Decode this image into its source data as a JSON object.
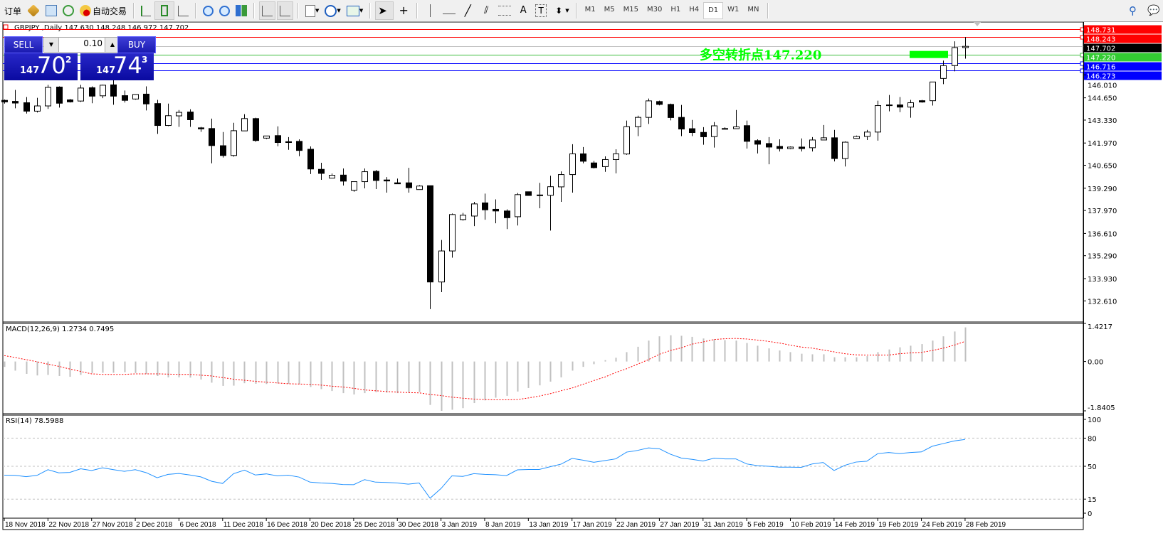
{
  "toolbar": {
    "new_order_label": "订单",
    "auto_trading_label": "自动交易",
    "timeframes": [
      "M1",
      "M5",
      "M15",
      "M30",
      "H1",
      "H4",
      "D1",
      "W1",
      "MN"
    ],
    "selected_timeframe": "D1",
    "icons": [
      "new-order-icon",
      "market-watch-icon",
      "navigator-icon",
      "signals-icon",
      "auto-trading-icon",
      "bar-chart-icon",
      "candlestick-icon",
      "line-chart-icon",
      "zoom-in-icon",
      "zoom-out-icon",
      "tile-windows-icon",
      "chart-shift-icon",
      "auto-scroll-icon",
      "indicators-icon",
      "periods-icon",
      "templates-icon",
      "cursor-icon",
      "crosshair-icon",
      "vertical-line-icon",
      "horizontal-line-icon",
      "trendline-icon",
      "equidistant-channel-icon",
      "fibonacci-icon",
      "text-icon",
      "text-label-icon",
      "arrows-icon",
      "search-icon",
      "chat-icon"
    ]
  },
  "chart": {
    "header": "GBPJPY ,Daily  147.630 148.248 146.972 147.702",
    "annotation": "多空转折点147.220",
    "colors": {
      "bull_body": "#ffffff",
      "bear_body": "#000000",
      "resistance": "#ff0000",
      "support": "#0000ff",
      "pivot": "#00ff00",
      "bid": "#c0c0c0",
      "macd_hist": "#c0c0c0",
      "macd_signal": "#ff0000",
      "rsi": "#1e90ff"
    }
  },
  "trade_panel": {
    "sell_label": "SELL",
    "buy_label": "BUY",
    "lot": "0.10",
    "sell_big": "147",
    "sell_mid": "70",
    "sell_sup": "2",
    "buy_big": "147",
    "buy_mid": "74",
    "buy_sup": "3"
  },
  "chart_data": [
    {
      "type": "candlestick",
      "symbol": "GBPJPY",
      "timeframe": "Daily",
      "ylim": [
        131.4,
        149.06
      ],
      "price_ticks": [
        "146.010",
        "144.650",
        "143.330",
        "141.970",
        "140.650",
        "139.290",
        "137.970",
        "136.610",
        "135.290",
        "133.930",
        "132.610"
      ],
      "date_labels": [
        "18 Nov 2018",
        "22 Nov 2018",
        "27 Nov 2018",
        "2 Dec 2018",
        "6 Dec 2018",
        "11 Dec 2018",
        "16 Dec 2018",
        "20 Dec 2018",
        "25 Dec 2018",
        "30 Dec 2018",
        "3 Jan 2019",
        "8 Jan 2019",
        "13 Jan 2019",
        "17 Jan 2019",
        "22 Jan 2019",
        "27 Jan 2019",
        "31 Jan 2019",
        "5 Feb 2019",
        "10 Feb 2019",
        "14 Feb 2019",
        "19 Feb 2019",
        "24 Feb 2019",
        "28 Feb 2019"
      ],
      "date_label_every_bars": 4,
      "levels": [
        {
          "value": 148.731,
          "label": "148.731",
          "kind": "resistance"
        },
        {
          "value": 148.243,
          "label": "148.243",
          "kind": "resistance"
        },
        {
          "value": 147.702,
          "label": "147.702",
          "kind": "bid"
        },
        {
          "value": 147.22,
          "label": "147.220",
          "kind": "pivot"
        },
        {
          "value": 146.716,
          "label": "146.716",
          "kind": "support"
        },
        {
          "value": 146.273,
          "label": "146.273",
          "kind": "support"
        }
      ],
      "ohlc": [
        [
          144.5,
          144.55,
          144.31,
          144.41
        ],
        [
          144.44,
          145.12,
          144.03,
          144.34
        ],
        [
          144.36,
          144.7,
          143.72,
          143.86
        ],
        [
          143.86,
          144.65,
          143.78,
          144.17
        ],
        [
          144.17,
          145.42,
          143.99,
          145.27
        ],
        [
          145.29,
          145.33,
          144.07,
          144.33
        ],
        [
          144.53,
          144.58,
          144.37,
          144.41
        ],
        [
          144.46,
          145.42,
          144.41,
          145.23
        ],
        [
          145.25,
          145.33,
          144.33,
          144.75
        ],
        [
          144.77,
          145.43,
          144.63,
          145.4
        ],
        [
          145.42,
          145.7,
          144.24,
          144.75
        ],
        [
          144.78,
          145.08,
          144.37,
          144.5
        ],
        [
          144.58,
          144.85,
          144.54,
          144.85
        ],
        [
          144.87,
          145.33,
          143.9,
          144.29
        ],
        [
          144.31,
          144.53,
          142.51,
          143.01
        ],
        [
          143.01,
          144.31,
          142.97,
          143.59
        ],
        [
          143.58,
          143.93,
          142.93,
          143.79
        ],
        [
          143.81,
          143.97,
          142.93,
          143.35
        ],
        [
          142.87,
          142.93,
          142.63,
          142.81
        ],
        [
          142.83,
          143.42,
          140.77,
          141.82
        ],
        [
          141.81,
          142.62,
          141.11,
          141.23
        ],
        [
          141.23,
          143.17,
          141.16,
          142.7
        ],
        [
          142.69,
          143.68,
          142.69,
          143.42
        ],
        [
          143.42,
          143.47,
          142.04,
          142.12
        ],
        [
          142.26,
          142.39,
          142.21,
          142.39
        ],
        [
          142.41,
          142.96,
          141.78,
          142.0
        ],
        [
          142.05,
          142.32,
          141.57,
          142.0
        ],
        [
          142.07,
          142.19,
          141.19,
          141.53
        ],
        [
          141.6,
          141.77,
          140.13,
          140.43
        ],
        [
          140.41,
          140.8,
          139.79,
          140.17
        ],
        [
          139.89,
          140.16,
          139.89,
          140.06
        ],
        [
          140.07,
          140.46,
          139.45,
          139.71
        ],
        [
          139.17,
          139.68,
          139.08,
          139.68
        ],
        [
          139.68,
          140.46,
          139.28,
          140.27
        ],
        [
          140.29,
          140.37,
          139.24,
          139.75
        ],
        [
          139.78,
          139.95,
          139.03,
          139.72
        ],
        [
          139.61,
          139.86,
          139.55,
          139.55
        ],
        [
          139.61,
          140.5,
          139.03,
          139.32
        ],
        [
          139.21,
          139.47,
          139.21,
          139.42
        ],
        [
          139.44,
          139.44,
          132.12,
          133.73
        ],
        [
          133.73,
          136.22,
          133.13,
          135.57
        ],
        [
          135.57,
          137.79,
          135.17,
          137.73
        ],
        [
          137.43,
          137.83,
          137.37,
          137.69
        ],
        [
          137.64,
          138.48,
          137.04,
          138.36
        ],
        [
          138.42,
          138.97,
          137.42,
          138.01
        ],
        [
          138.04,
          138.63,
          137.21,
          137.94
        ],
        [
          137.94,
          138.04,
          136.87,
          137.54
        ],
        [
          137.6,
          139.01,
          137.08,
          138.91
        ],
        [
          139.08,
          139.08,
          138.86,
          138.86
        ],
        [
          138.89,
          139.61,
          138.1,
          138.86
        ],
        [
          138.87,
          140.03,
          136.78,
          139.38
        ],
        [
          139.37,
          140.29,
          138.48,
          140.1
        ],
        [
          140.1,
          141.9,
          139.03,
          141.33
        ],
        [
          141.33,
          141.73,
          140.77,
          140.89
        ],
        [
          140.79,
          140.91,
          140.46,
          140.51
        ],
        [
          140.57,
          141.18,
          140.26,
          140.99
        ],
        [
          140.99,
          141.6,
          140.17,
          141.33
        ],
        [
          141.32,
          143.3,
          141.27,
          142.94
        ],
        [
          142.94,
          143.59,
          142.38,
          143.49
        ],
        [
          143.49,
          144.61,
          143.1,
          144.47
        ],
        [
          144.43,
          144.48,
          144.2,
          144.26
        ],
        [
          144.26,
          144.31,
          143.31,
          143.48
        ],
        [
          143.49,
          144.23,
          142.38,
          142.8
        ],
        [
          142.82,
          143.34,
          142.38,
          142.59
        ],
        [
          142.6,
          142.91,
          141.87,
          142.34
        ],
        [
          142.35,
          143.21,
          141.7,
          142.99
        ],
        [
          142.82,
          142.9,
          142.8,
          142.83
        ],
        [
          142.82,
          143.93,
          142.82,
          142.93
        ],
        [
          143.0,
          143.3,
          141.64,
          142.07
        ],
        [
          142.11,
          142.19,
          141.35,
          141.9
        ],
        [
          141.94,
          142.32,
          140.71,
          141.73
        ],
        [
          141.77,
          142.19,
          141.47,
          141.64
        ],
        [
          141.64,
          141.77,
          141.6,
          141.73
        ],
        [
          141.73,
          142.24,
          141.47,
          141.64
        ],
        [
          141.69,
          142.32,
          141.47,
          142.15
        ],
        [
          142.15,
          143.04,
          142.15,
          142.28
        ],
        [
          142.28,
          142.75,
          140.88,
          141.05
        ],
        [
          141.05,
          142.07,
          140.58,
          142.02
        ],
        [
          142.24,
          142.41,
          142.24,
          142.36
        ],
        [
          142.36,
          142.75,
          142.15,
          142.62
        ],
        [
          142.62,
          144.48,
          142.11,
          144.19
        ],
        [
          144.19,
          144.82,
          143.85,
          144.23
        ],
        [
          144.23,
          144.7,
          143.8,
          144.1
        ],
        [
          144.1,
          144.53,
          143.47,
          144.36
        ],
        [
          144.48,
          144.53,
          144.36,
          144.4
        ],
        [
          144.48,
          145.59,
          144.19,
          145.59
        ],
        [
          145.8,
          146.86,
          145.46,
          146.56
        ],
        [
          146.56,
          148.0,
          146.22,
          147.63
        ],
        [
          147.63,
          148.248,
          146.972,
          147.702
        ]
      ]
    },
    {
      "type": "bar+line",
      "title": "MACD(12,26,9) 1.2734 0.7495",
      "ylim": [
        -1.8405,
        1.4217
      ],
      "ticks": [
        "1.4217",
        "0.00",
        "-1.8405"
      ],
      "histogram": [
        -0.2,
        -0.34,
        -0.46,
        -0.52,
        -0.5,
        -0.54,
        -0.57,
        -0.5,
        -0.43,
        -0.42,
        -0.42,
        -0.4,
        -0.43,
        -0.46,
        -0.54,
        -0.59,
        -0.59,
        -0.6,
        -0.67,
        -0.79,
        -0.91,
        -0.9,
        -0.81,
        -0.83,
        -0.84,
        -0.82,
        -0.83,
        -0.85,
        -0.95,
        -1.03,
        -1.1,
        -1.18,
        -1.23,
        -1.18,
        -1.14,
        -1.16,
        -1.18,
        -1.17,
        -1.14,
        -1.62,
        -1.84,
        -1.8,
        -1.74,
        -1.55,
        -1.45,
        -1.35,
        -1.28,
        -1.12,
        -0.99,
        -0.89,
        -0.75,
        -0.59,
        -0.34,
        -0.2,
        -0.1,
        0.05,
        0.14,
        0.35,
        0.55,
        0.78,
        0.94,
        0.98,
        0.96,
        0.92,
        0.86,
        0.83,
        0.8,
        0.78,
        0.69,
        0.59,
        0.49,
        0.41,
        0.35,
        0.29,
        0.27,
        0.27,
        0.16,
        0.16,
        0.16,
        0.2,
        0.35,
        0.45,
        0.53,
        0.59,
        0.65,
        0.78,
        0.94,
        1.12,
        1.2734
      ],
      "signal": [
        0.22,
        0.15,
        0.07,
        -0.01,
        -0.1,
        -0.18,
        -0.28,
        -0.37,
        -0.46,
        -0.48,
        -0.48,
        -0.48,
        -0.46,
        -0.46,
        -0.46,
        -0.47,
        -0.48,
        -0.48,
        -0.51,
        -0.54,
        -0.6,
        -0.66,
        -0.7,
        -0.74,
        -0.77,
        -0.8,
        -0.83,
        -0.84,
        -0.85,
        -0.88,
        -0.92,
        -0.95,
        -1.0,
        -1.06,
        -1.09,
        -1.12,
        -1.14,
        -1.16,
        -1.17,
        -1.23,
        -1.27,
        -1.33,
        -1.37,
        -1.4,
        -1.42,
        -1.43,
        -1.43,
        -1.42,
        -1.36,
        -1.29,
        -1.2,
        -1.09,
        -0.99,
        -0.85,
        -0.71,
        -0.58,
        -0.41,
        -0.27,
        -0.1,
        0.07,
        0.27,
        0.41,
        0.51,
        0.65,
        0.73,
        0.82,
        0.85,
        0.86,
        0.84,
        0.8,
        0.75,
        0.69,
        0.61,
        0.54,
        0.5,
        0.43,
        0.36,
        0.29,
        0.25,
        0.24,
        0.24,
        0.24,
        0.29,
        0.32,
        0.34,
        0.41,
        0.5,
        0.61,
        0.7495
      ]
    },
    {
      "type": "line",
      "title": "RSI(14) 78.5988",
      "ylim": [
        0,
        100
      ],
      "levels": [
        80,
        50,
        15
      ],
      "ticks": [
        "100",
        "80",
        "50",
        "15",
        "0"
      ],
      "values": [
        40.5,
        40.3,
        38.9,
        40.3,
        46.4,
        43.0,
        43.5,
        47.3,
        45.5,
        48.4,
        46.4,
        44.6,
        46.4,
        43.2,
        37.8,
        41.4,
        42.3,
        40.7,
        38.7,
        34.0,
        31.7,
        42.1,
        45.9,
        40.7,
        41.9,
        39.8,
        40.5,
        38.5,
        33.1,
        32.2,
        31.7,
        30.6,
        30.4,
        35.8,
        33.1,
        32.8,
        32.2,
        31.0,
        32.2,
        16.0,
        26.3,
        39.8,
        39.2,
        42.1,
        41.4,
        41.0,
        40.1,
        46.2,
        46.6,
        46.6,
        49.5,
        52.3,
        58.4,
        56.5,
        54.3,
        56.1,
        57.9,
        65.1,
        66.9,
        69.6,
        68.7,
        62.9,
        58.8,
        57.4,
        55.6,
        58.6,
        57.9,
        57.9,
        52.5,
        50.7,
        50.0,
        49.1,
        49.1,
        48.9,
        52.5,
        54.1,
        45.5,
        51.1,
        54.5,
        55.4,
        63.5,
        64.7,
        63.5,
        64.7,
        65.3,
        71.4,
        74.2,
        77.0,
        78.5988
      ]
    }
  ]
}
